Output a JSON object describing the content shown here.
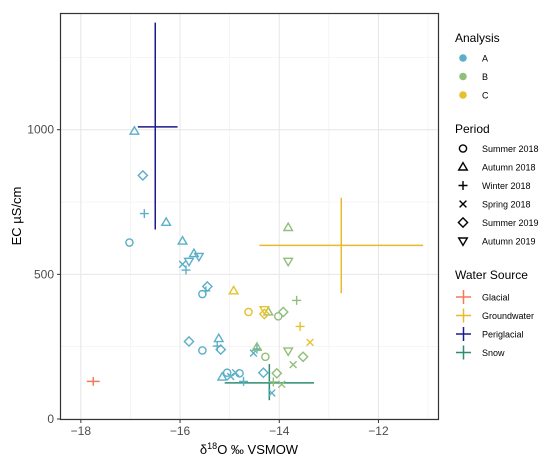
{
  "chart_data": {
    "type": "scatter",
    "xlabel_parts": [
      "δ",
      "18",
      "O ‰ VSMOW"
    ],
    "ylabel": "EC µS/cm",
    "xlim": [
      -18.4,
      -10.8
    ],
    "ylim": [
      0,
      1400
    ],
    "xticks": [
      -18,
      -16,
      -14,
      -12
    ],
    "yticks": [
      0,
      500,
      1000
    ],
    "grid": true,
    "legend_placement": "right",
    "analysis": [
      {
        "key": "A",
        "label": "A",
        "color": "#5BAFC8"
      },
      {
        "key": "B",
        "label": "B",
        "color": "#8FBF7A"
      },
      {
        "key": "C",
        "label": "C",
        "color": "#E6C12E"
      }
    ],
    "periods": [
      {
        "key": "S18",
        "label": "Summer 2018",
        "shape": "circle"
      },
      {
        "key": "A18",
        "label": "Autumn 2018",
        "shape": "triangle-up"
      },
      {
        "key": "W18",
        "label": "Winter 2018",
        "shape": "plus"
      },
      {
        "key": "Sp18",
        "label": "Spring 2018",
        "shape": "cross"
      },
      {
        "key": "S19",
        "label": "Summer 2019",
        "shape": "diamond"
      },
      {
        "key": "A19",
        "label": "Autumn 2019",
        "shape": "triangle-down"
      }
    ],
    "water_sources": [
      {
        "key": "Glacial",
        "label": "Glacial",
        "color": "#F4795A"
      },
      {
        "key": "Groundwater",
        "label": "Groundwater",
        "color": "#E6B92E"
      },
      {
        "key": "Periglacial",
        "label": "Periglacial",
        "color": "#1A1A8C"
      },
      {
        "key": "Snow",
        "label": "Snow",
        "color": "#2E8C74"
      }
    ],
    "source_ranges": [
      {
        "source": "Glacial",
        "x": -17.75,
        "y": 130,
        "x_range": [
          -17.88,
          -17.62
        ],
        "y_range": [
          115,
          145
        ]
      },
      {
        "source": "Groundwater",
        "x": -12.75,
        "y": 600,
        "x_range": [
          -14.4,
          -11.1
        ],
        "y_range": [
          435,
          765
        ]
      },
      {
        "source": "Periglacial",
        "x": -16.5,
        "y": 1010,
        "x_range": [
          -16.85,
          -16.05
        ],
        "y_range": [
          655,
          1370
        ]
      },
      {
        "source": "Snow",
        "x": -14.2,
        "y": 125,
        "x_range": [
          -15.1,
          -13.3
        ],
        "y_range": [
          65,
          190
        ]
      }
    ],
    "points": [
      {
        "x": -17.02,
        "y": 610,
        "a": "A",
        "p": "S18"
      },
      {
        "x": -16.72,
        "y": 710,
        "a": "A",
        "p": "W18"
      },
      {
        "x": -16.92,
        "y": 995,
        "a": "A",
        "p": "A18"
      },
      {
        "x": -16.75,
        "y": 842,
        "a": "A",
        "p": "S19"
      },
      {
        "x": -16.28,
        "y": 680,
        "a": "A",
        "p": "A18"
      },
      {
        "x": -15.95,
        "y": 615,
        "a": "A",
        "p": "A18"
      },
      {
        "x": -15.95,
        "y": 535,
        "a": "A",
        "p": "Sp18"
      },
      {
        "x": -15.88,
        "y": 515,
        "a": "A",
        "p": "W18"
      },
      {
        "x": -15.72,
        "y": 572,
        "a": "A",
        "p": "A18"
      },
      {
        "x": -15.62,
        "y": 562,
        "a": "A",
        "p": "A19"
      },
      {
        "x": -15.82,
        "y": 545,
        "a": "A",
        "p": "A19"
      },
      {
        "x": -15.45,
        "y": 458,
        "a": "A",
        "p": "S19"
      },
      {
        "x": -15.48,
        "y": 443,
        "a": "A",
        "p": "W18"
      },
      {
        "x": -15.55,
        "y": 432,
        "a": "A",
        "p": "S18"
      },
      {
        "x": -15.82,
        "y": 268,
        "a": "A",
        "p": "S19"
      },
      {
        "x": -15.55,
        "y": 237,
        "a": "A",
        "p": "S18"
      },
      {
        "x": -15.22,
        "y": 278,
        "a": "A",
        "p": "A18"
      },
      {
        "x": -15.25,
        "y": 252,
        "a": "A",
        "p": "W18"
      },
      {
        "x": -15.18,
        "y": 240,
        "a": "A",
        "p": "S19"
      },
      {
        "x": -15.15,
        "y": 145,
        "a": "A",
        "p": "A18"
      },
      {
        "x": -15.05,
        "y": 160,
        "a": "A",
        "p": "S18"
      },
      {
        "x": -14.98,
        "y": 147,
        "a": "A",
        "p": "Sp18"
      },
      {
        "x": -14.8,
        "y": 158,
        "a": "A",
        "p": "S18"
      },
      {
        "x": -14.88,
        "y": 160,
        "a": "A",
        "p": "Sp18"
      },
      {
        "x": -14.52,
        "y": 228,
        "a": "A",
        "p": "Sp18"
      },
      {
        "x": -14.45,
        "y": 242,
        "a": "A",
        "p": "W18"
      },
      {
        "x": -14.32,
        "y": 160,
        "a": "A",
        "p": "S19"
      },
      {
        "x": -14.72,
        "y": 130,
        "a": "A",
        "p": "W18"
      },
      {
        "x": -14.15,
        "y": 90,
        "a": "A",
        "p": "Sp18"
      },
      {
        "x": -13.82,
        "y": 662,
        "a": "B",
        "p": "A18"
      },
      {
        "x": -13.82,
        "y": 545,
        "a": "B",
        "p": "A19"
      },
      {
        "x": -13.65,
        "y": 410,
        "a": "B",
        "p": "W18"
      },
      {
        "x": -13.92,
        "y": 370,
        "a": "B",
        "p": "S19"
      },
      {
        "x": -14.02,
        "y": 355,
        "a": "B",
        "p": "S18"
      },
      {
        "x": -14.22,
        "y": 370,
        "a": "B",
        "p": "A18"
      },
      {
        "x": -14.45,
        "y": 248,
        "a": "B",
        "p": "A18"
      },
      {
        "x": -14.28,
        "y": 215,
        "a": "B",
        "p": "S18"
      },
      {
        "x": -13.82,
        "y": 235,
        "a": "B",
        "p": "A19"
      },
      {
        "x": -13.52,
        "y": 215,
        "a": "B",
        "p": "S19"
      },
      {
        "x": -13.72,
        "y": 188,
        "a": "B",
        "p": "Sp18"
      },
      {
        "x": -14.05,
        "y": 158,
        "a": "B",
        "p": "S19"
      },
      {
        "x": -14.12,
        "y": 128,
        "a": "B",
        "p": "W18"
      },
      {
        "x": -13.95,
        "y": 120,
        "a": "B",
        "p": "Sp18"
      },
      {
        "x": -14.92,
        "y": 443,
        "a": "C",
        "p": "A18"
      },
      {
        "x": -14.62,
        "y": 370,
        "a": "C",
        "p": "S18"
      },
      {
        "x": -14.3,
        "y": 378,
        "a": "C",
        "p": "A19"
      },
      {
        "x": -14.3,
        "y": 363,
        "a": "C",
        "p": "S19"
      },
      {
        "x": -13.58,
        "y": 320,
        "a": "C",
        "p": "W18"
      },
      {
        "x": -13.38,
        "y": 265,
        "a": "C",
        "p": "Sp18"
      }
    ]
  },
  "legend": {
    "analysis_title": "Analysis",
    "period_title": "Period",
    "source_title": "Water Source"
  }
}
